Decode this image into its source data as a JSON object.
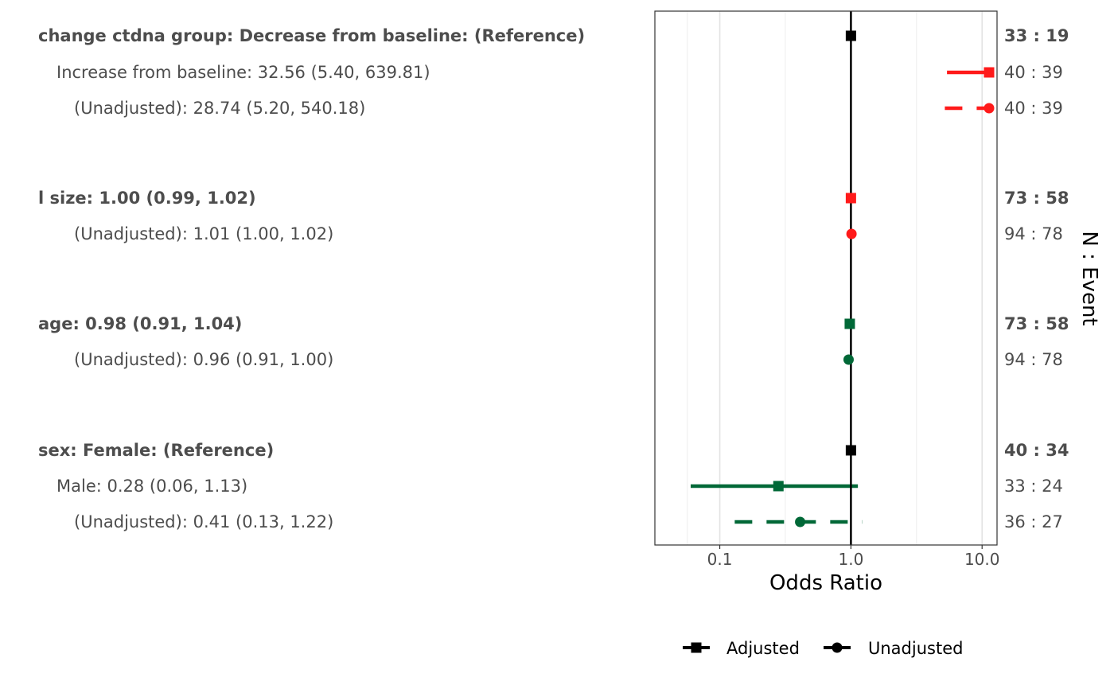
{
  "chart_data": {
    "type": "forest",
    "xlabel": "Odds Ratio",
    "right_axis_label": "N : Event",
    "x_scale": "log10",
    "xlim": [
      0.032,
      13.0
    ],
    "x_ticks": [
      {
        "value": 0.1,
        "label": "0.1"
      },
      {
        "value": 1,
        "label": "1.0"
      },
      {
        "value": 10,
        "label": "10.0"
      }
    ],
    "reference_line": 1,
    "grid": true,
    "colors": {
      "reference": "#000000",
      "increase": "#ff1a1a",
      "decrease": "#006837"
    },
    "rows": [
      {
        "label": "change ctdna group: Decrease from baseline: (Reference)",
        "indent": 0,
        "bold": true,
        "or": 1.0,
        "lower": null,
        "upper": null,
        "type": "adjusted",
        "color": "reference",
        "n_event": "33 : 19"
      },
      {
        "label": "Increase from baseline: 32.56 (5.40, 639.81)",
        "indent": 1,
        "bold": false,
        "or": 32.56,
        "lower": 5.4,
        "upper": 639.81,
        "type": "adjusted",
        "color": "increase",
        "n_event": "40 : 39"
      },
      {
        "label": "(Unadjusted): 28.74 (5.20, 540.18)",
        "indent": 2,
        "bold": false,
        "or": 28.74,
        "lower": 5.2,
        "upper": 540.18,
        "type": "unadjusted",
        "color": "increase",
        "n_event": "40 : 39"
      },
      {
        "label": "l size: 1.00 (0.99, 1.02)",
        "indent": 0,
        "bold": true,
        "or": 1.0,
        "lower": 0.99,
        "upper": 1.02,
        "type": "adjusted",
        "color": "increase",
        "n_event": "73 : 58"
      },
      {
        "label": "(Unadjusted): 1.01 (1.00, 1.02)",
        "indent": 2,
        "bold": false,
        "or": 1.01,
        "lower": 1.0,
        "upper": 1.02,
        "type": "unadjusted",
        "color": "increase",
        "n_event": "94 : 78"
      },
      {
        "label": "age: 0.98 (0.91, 1.04)",
        "indent": 0,
        "bold": true,
        "or": 0.98,
        "lower": 0.91,
        "upper": 1.04,
        "type": "adjusted",
        "color": "decrease",
        "n_event": "73 : 58"
      },
      {
        "label": "(Unadjusted): 0.96 (0.91, 1.00)",
        "indent": 2,
        "bold": false,
        "or": 0.96,
        "lower": 0.91,
        "upper": 1.0,
        "type": "unadjusted",
        "color": "decrease",
        "n_event": "94 : 78"
      },
      {
        "label": "sex: Female: (Reference)",
        "indent": 0,
        "bold": true,
        "or": 1.0,
        "lower": null,
        "upper": null,
        "type": "adjusted",
        "color": "reference",
        "n_event": "40 : 34"
      },
      {
        "label": "Male: 0.28 (0.06, 1.13)",
        "indent": 1,
        "bold": false,
        "or": 0.28,
        "lower": 0.06,
        "upper": 1.13,
        "type": "adjusted",
        "color": "decrease",
        "n_event": "33 : 24"
      },
      {
        "label": "(Unadjusted): 0.41 (0.13, 1.22)",
        "indent": 2,
        "bold": false,
        "or": 0.41,
        "lower": 0.13,
        "upper": 1.22,
        "type": "unadjusted",
        "color": "decrease",
        "n_event": "36 : 27"
      }
    ],
    "legend": [
      {
        "label": "Adjusted",
        "shape": "square"
      },
      {
        "label": "Unadjusted",
        "shape": "circle"
      }
    ],
    "legend_position": "bottom"
  }
}
